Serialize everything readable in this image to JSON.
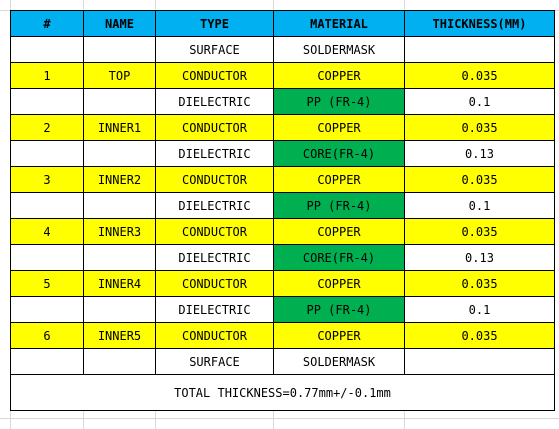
{
  "headers": [
    "#",
    "NAME",
    "TYPE",
    "MATERIAL",
    "THICKNESS(MM)"
  ],
  "rows": [
    {
      "num": "",
      "name": "",
      "type": "SURFACE",
      "material": "SOLDERMASK",
      "thickness": "",
      "style": "white",
      "material_fill": ""
    },
    {
      "num": "1",
      "name": "TOP",
      "type": "CONDUCTOR",
      "material": "COPPER",
      "thickness": "0.035",
      "style": "yellow",
      "material_fill": ""
    },
    {
      "num": "",
      "name": "",
      "type": "DIELECTRIC",
      "material": "PP (FR-4)",
      "thickness": "0.1",
      "style": "white",
      "material_fill": "green"
    },
    {
      "num": "2",
      "name": "INNER1",
      "type": "CONDUCTOR",
      "material": "COPPER",
      "thickness": "0.035",
      "style": "yellow",
      "material_fill": ""
    },
    {
      "num": "",
      "name": "",
      "type": "DIELECTRIC",
      "material": "CORE(FR-4)",
      "thickness": "0.13",
      "style": "white",
      "material_fill": "green"
    },
    {
      "num": "3",
      "name": "INNER2",
      "type": "CONDUCTOR",
      "material": "COPPER",
      "thickness": "0.035",
      "style": "yellow",
      "material_fill": ""
    },
    {
      "num": "",
      "name": "",
      "type": "DIELECTRIC",
      "material": "PP (FR-4)",
      "thickness": "0.1",
      "style": "white",
      "material_fill": "green"
    },
    {
      "num": "4",
      "name": "INNER3",
      "type": "CONDUCTOR",
      "material": "COPPER",
      "thickness": "0.035",
      "style": "yellow",
      "material_fill": ""
    },
    {
      "num": "",
      "name": "",
      "type": "DIELECTRIC",
      "material": "CORE(FR-4)",
      "thickness": "0.13",
      "style": "white",
      "material_fill": "green"
    },
    {
      "num": "5",
      "name": "INNER4",
      "type": "CONDUCTOR",
      "material": "COPPER",
      "thickness": "0.035",
      "style": "yellow",
      "material_fill": ""
    },
    {
      "num": "",
      "name": "",
      "type": "DIELECTRIC",
      "material": "PP (FR-4)",
      "thickness": "0.1",
      "style": "white",
      "material_fill": "green"
    },
    {
      "num": "6",
      "name": "INNER5",
      "type": "CONDUCTOR",
      "material": "COPPER",
      "thickness": "0.035",
      "style": "yellow",
      "material_fill": ""
    },
    {
      "num": "",
      "name": "",
      "type": "SURFACE",
      "material": "SOLDERMASK",
      "thickness": "",
      "style": "white",
      "material_fill": ""
    }
  ],
  "total": "TOTAL THICKNESS=0.77mm+/-0.1mm",
  "colors": {
    "header": "#00b0f0",
    "conductor_row": "#ffff00",
    "dielectric_material": "#00b050",
    "gridline": "#d9d9d9"
  }
}
